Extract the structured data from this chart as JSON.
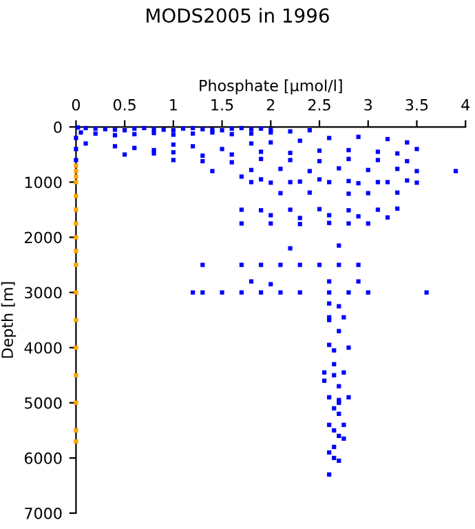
{
  "chart_data": {
    "type": "scatter",
    "title": "MODS2005 in 1996",
    "xlabel": "Phosphate [µmol/l]",
    "ylabel": "Depth [m]",
    "xlim": [
      0,
      4
    ],
    "xticks": [
      0,
      0.5,
      1,
      1.5,
      2,
      2.5,
      3,
      3.5,
      4
    ],
    "ylim": [
      7000,
      0
    ],
    "yticks": [
      0,
      1000,
      2000,
      3000,
      4000,
      5000,
      6000,
      7000
    ],
    "marker": "square",
    "grid": false,
    "series": [
      {
        "color": "#0000ff",
        "x": [
          0.02,
          0.1,
          0.2,
          0.3,
          0.4,
          0.5,
          0.6,
          0.7,
          0.8,
          0.9,
          1.0,
          1.1,
          1.2,
          1.3,
          1.4,
          1.5,
          1.6,
          1.7,
          1.8,
          1.9,
          2.0,
          0.05,
          0.2,
          0.4,
          0.6,
          0.8,
          1.0,
          1.2,
          1.4,
          1.6,
          1.8,
          2.0,
          2.2,
          2.4,
          0.0,
          0.0,
          0.0,
          0.1,
          0.4,
          0.6,
          0.8,
          1.0,
          1.2,
          1.5,
          1.8,
          2.0,
          2.3,
          2.6,
          2.9,
          3.2,
          3.4,
          0.5,
          0.8,
          1.0,
          1.3,
          1.6,
          1.9,
          2.2,
          2.5,
          2.8,
          3.1,
          3.3,
          3.5,
          1.0,
          1.3,
          1.6,
          1.9,
          2.2,
          2.5,
          2.8,
          3.1,
          3.4,
          1.4,
          1.8,
          2.1,
          2.4,
          2.7,
          3.0,
          3.3,
          3.5,
          3.9,
          1.7,
          1.9,
          2.2,
          2.5,
          2.8,
          3.1,
          3.4,
          1.8,
          2.0,
          2.3,
          2.6,
          2.9,
          3.2,
          3.5,
          2.1,
          2.4,
          2.8,
          3.0,
          3.3,
          1.7,
          1.9,
          2.2,
          2.5,
          2.8,
          3.1,
          3.3,
          2.0,
          2.3,
          2.6,
          2.9,
          3.2,
          1.7,
          2.0,
          2.3,
          2.6,
          2.8,
          3.0,
          2.2,
          2.7,
          1.3,
          1.7,
          1.9,
          2.1,
          2.3,
          2.5,
          2.7,
          2.9,
          1.8,
          2.0,
          2.6,
          2.9,
          1.2,
          1.3,
          1.5,
          1.7,
          1.9,
          2.1,
          2.3,
          2.6,
          2.8,
          3.0,
          3.6,
          2.6,
          2.7,
          2.6,
          2.75,
          2.6,
          2.7,
          2.6,
          2.8,
          2.65,
          2.65,
          2.55,
          2.75,
          2.65,
          2.55,
          2.7,
          2.6,
          2.8,
          2.7,
          2.7,
          2.65,
          2.7,
          2.6,
          2.75,
          2.65,
          2.7,
          2.75,
          2.65,
          2.6,
          2.65,
          2.7,
          2.6
        ],
        "values": [
          10,
          20,
          30,
          40,
          50,
          60,
          30,
          20,
          40,
          50,
          60,
          30,
          20,
          40,
          50,
          60,
          30,
          20,
          40,
          30,
          50,
          100,
          120,
          150,
          130,
          110,
          140,
          120,
          100,
          130,
          120,
          100,
          80,
          60,
          200,
          400,
          600,
          300,
          350,
          380,
          420,
          320,
          350,
          400,
          300,
          280,
          250,
          200,
          180,
          220,
          280,
          500,
          480,
          460,
          520,
          500,
          450,
          470,
          430,
          420,
          450,
          480,
          400,
          600,
          620,
          640,
          580,
          600,
          620,
          580,
          600,
          620,
          800,
          780,
          760,
          800,
          750,
          780,
          760,
          800,
          800,
          900,
          950,
          1000,
          950,
          980,
          1000,
          970,
          1000,
          1010,
          990,
          1000,
          1020,
          1000,
          1010,
          1200,
          1190,
          1210,
          1200,
          1190,
          1500,
          1510,
          1500,
          1490,
          1510,
          1500,
          1480,
          1600,
          1650,
          1600,
          1620,
          1640,
          1750,
          1750,
          1760,
          1740,
          1750,
          1750,
          2200,
          2150,
          2500,
          2500,
          2500,
          2500,
          2500,
          2500,
          2500,
          2500,
          2800,
          2850,
          2800,
          2800,
          3000,
          3000,
          3000,
          3000,
          3000,
          3000,
          3000,
          3000,
          3000,
          3000,
          3000,
          3200,
          3250,
          3450,
          3450,
          3500,
          3700,
          3950,
          4000,
          4050,
          4300,
          4450,
          4450,
          4500,
          4600,
          4700,
          4900,
          4900,
          4950,
          5000,
          5100,
          5200,
          5400,
          5400,
          5500,
          5600,
          5650,
          5800,
          5900,
          6000,
          6050,
          6300
        ]
      },
      {
        "color": "#ffa500",
        "x": [
          0,
          0,
          0,
          0,
          0,
          0,
          0,
          0,
          0,
          0,
          0,
          0,
          0,
          0,
          0,
          0,
          0
        ],
        "values": [
          700,
          800,
          900,
          1000,
          1250,
          1500,
          1750,
          2000,
          2250,
          2500,
          3000,
          3500,
          4000,
          4500,
          5000,
          5500,
          5700
        ]
      }
    ]
  }
}
